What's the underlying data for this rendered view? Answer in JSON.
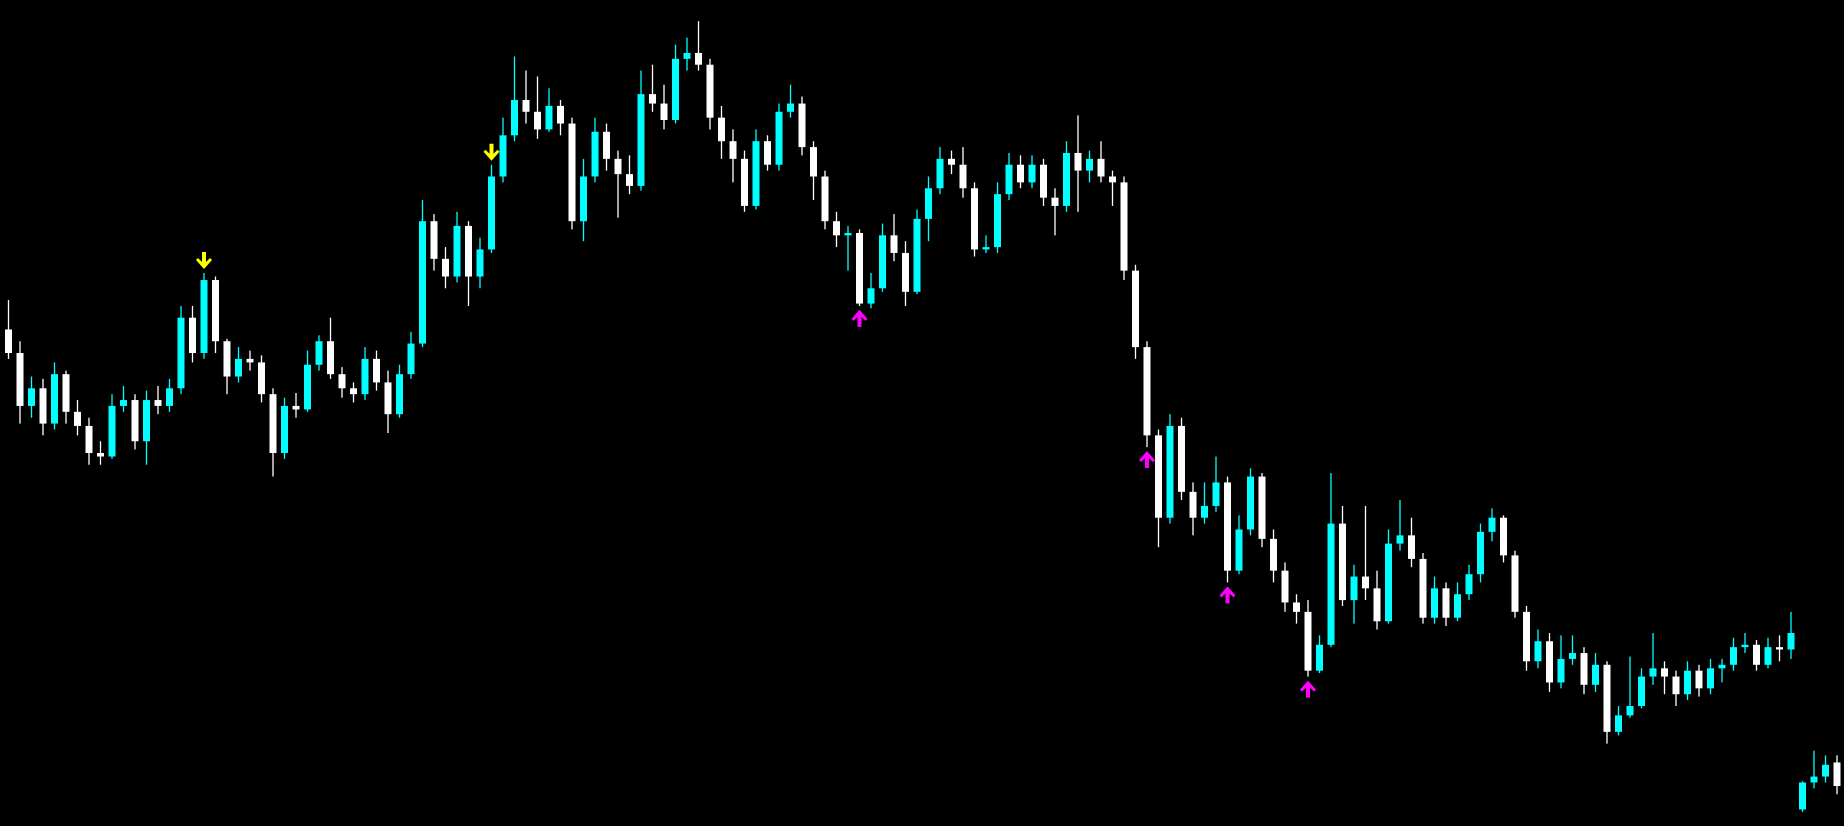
{
  "chart_data": {
    "type": "candlestick",
    "title": "",
    "xlabel": "",
    "ylabel": "",
    "ylim": [
      1.0998,
      1.17
    ],
    "grid": false,
    "legend": "none",
    "colors": {
      "background": "#000000",
      "bullish": "#00ffff",
      "bearish": "#ffffff",
      "sell_signal": "#ffff00",
      "buy_signal": "#ff00ff"
    },
    "ohlc_order": [
      "open",
      "high",
      "low",
      "close"
    ],
    "candles": [
      [
        1.142,
        1.1445,
        1.1395,
        1.14
      ],
      [
        1.14,
        1.141,
        1.134,
        1.1355
      ],
      [
        1.1355,
        1.138,
        1.1345,
        1.137
      ],
      [
        1.137,
        1.1378,
        1.133,
        1.134
      ],
      [
        1.134,
        1.1392,
        1.1335,
        1.1382
      ],
      [
        1.1382,
        1.1385,
        1.134,
        1.135
      ],
      [
        1.135,
        1.136,
        1.133,
        1.1338
      ],
      [
        1.1338,
        1.1345,
        1.1305,
        1.1315
      ],
      [
        1.1315,
        1.1325,
        1.1305,
        1.1312
      ],
      [
        1.1312,
        1.1365,
        1.131,
        1.1355
      ],
      [
        1.1355,
        1.1372,
        1.135,
        1.136
      ],
      [
        1.136,
        1.1365,
        1.1318,
        1.1325
      ],
      [
        1.1325,
        1.1368,
        1.1305,
        1.136
      ],
      [
        1.136,
        1.1372,
        1.1348,
        1.1355
      ],
      [
        1.1355,
        1.1378,
        1.135,
        1.137
      ],
      [
        1.137,
        1.144,
        1.1365,
        1.143
      ],
      [
        1.143,
        1.144,
        1.1392,
        1.14
      ],
      [
        1.14,
        1.1468,
        1.1395,
        1.1462
      ],
      [
        1.1462,
        1.1465,
        1.14,
        1.141
      ],
      [
        1.141,
        1.1412,
        1.1365,
        1.138
      ],
      [
        1.138,
        1.1405,
        1.1375,
        1.1395
      ],
      [
        1.1395,
        1.1402,
        1.1385,
        1.1392
      ],
      [
        1.1392,
        1.1398,
        1.1358,
        1.1365
      ],
      [
        1.1365,
        1.137,
        1.1295,
        1.1315
      ],
      [
        1.1315,
        1.1362,
        1.131,
        1.1355
      ],
      [
        1.1355,
        1.1366,
        1.1345,
        1.1352
      ],
      [
        1.1352,
        1.1402,
        1.135,
        1.139
      ],
      [
        1.139,
        1.1415,
        1.1385,
        1.141
      ],
      [
        1.141,
        1.143,
        1.1378,
        1.1382
      ],
      [
        1.1382,
        1.1388,
        1.1362,
        1.137
      ],
      [
        1.137,
        1.1375,
        1.1358,
        1.1365
      ],
      [
        1.1365,
        1.1405,
        1.136,
        1.1395
      ],
      [
        1.1395,
        1.1402,
        1.1368,
        1.1375
      ],
      [
        1.1375,
        1.1385,
        1.1332,
        1.1348
      ],
      [
        1.1348,
        1.139,
        1.1345,
        1.1382
      ],
      [
        1.1382,
        1.1418,
        1.1378,
        1.1408
      ],
      [
        1.1408,
        1.153,
        1.1405,
        1.1512
      ],
      [
        1.1512,
        1.1518,
        1.147,
        1.148
      ],
      [
        1.148,
        1.149,
        1.1455,
        1.1465
      ],
      [
        1.1465,
        1.152,
        1.146,
        1.1508
      ],
      [
        1.1508,
        1.1512,
        1.144,
        1.1465
      ],
      [
        1.1465,
        1.1498,
        1.1455,
        1.1488
      ],
      [
        1.1488,
        1.156,
        1.1485,
        1.155
      ],
      [
        1.155,
        1.16,
        1.1545,
        1.1585
      ],
      [
        1.1585,
        1.1652,
        1.158,
        1.1615
      ],
      [
        1.1615,
        1.164,
        1.1595,
        1.1605
      ],
      [
        1.1605,
        1.1635,
        1.1582,
        1.159
      ],
      [
        1.159,
        1.1625,
        1.1588,
        1.161
      ],
      [
        1.161,
        1.1615,
        1.1585,
        1.1595
      ],
      [
        1.1595,
        1.16,
        1.1505,
        1.1512
      ],
      [
        1.1512,
        1.1565,
        1.1495,
        1.155
      ],
      [
        1.155,
        1.16,
        1.1545,
        1.1588
      ],
      [
        1.1588,
        1.1595,
        1.1555,
        1.1565
      ],
      [
        1.1565,
        1.1572,
        1.1515,
        1.1552
      ],
      [
        1.1552,
        1.1568,
        1.1535,
        1.1542
      ],
      [
        1.1542,
        1.164,
        1.1538,
        1.162
      ],
      [
        1.162,
        1.1645,
        1.1605,
        1.1612
      ],
      [
        1.1612,
        1.1628,
        1.159,
        1.1598
      ],
      [
        1.1598,
        1.1662,
        1.1595,
        1.165
      ],
      [
        1.165,
        1.1668,
        1.164,
        1.1655
      ],
      [
        1.1655,
        1.1682,
        1.164,
        1.1645
      ],
      [
        1.1645,
        1.165,
        1.159,
        1.16
      ],
      [
        1.16,
        1.161,
        1.1565,
        1.158
      ],
      [
        1.158,
        1.159,
        1.1545,
        1.1565
      ],
      [
        1.1565,
        1.1572,
        1.152,
        1.1525
      ],
      [
        1.1525,
        1.159,
        1.1522,
        1.158
      ],
      [
        1.158,
        1.1585,
        1.1555,
        1.156
      ],
      [
        1.156,
        1.1612,
        1.1555,
        1.1605
      ],
      [
        1.1605,
        1.1628,
        1.16,
        1.1612
      ],
      [
        1.1612,
        1.1618,
        1.1568,
        1.1575
      ],
      [
        1.1575,
        1.158,
        1.153,
        1.155
      ],
      [
        1.155,
        1.1555,
        1.1505,
        1.1512
      ],
      [
        1.1512,
        1.152,
        1.149,
        1.15
      ],
      [
        1.15,
        1.1508,
        1.147,
        1.1502
      ],
      [
        1.1502,
        1.1505,
        1.144,
        1.1442
      ],
      [
        1.1442,
        1.1468,
        1.1438,
        1.1455
      ],
      [
        1.1455,
        1.151,
        1.1452,
        1.15
      ],
      [
        1.15,
        1.1518,
        1.1478,
        1.1485
      ],
      [
        1.1485,
        1.1495,
        1.144,
        1.1452
      ],
      [
        1.1452,
        1.1522,
        1.145,
        1.1514
      ],
      [
        1.1514,
        1.155,
        1.1495,
        1.154
      ],
      [
        1.154,
        1.1575,
        1.1535,
        1.1565
      ],
      [
        1.1565,
        1.1572,
        1.1552,
        1.156
      ],
      [
        1.156,
        1.1575,
        1.1532,
        1.154
      ],
      [
        1.154,
        1.1545,
        1.1482,
        1.1488
      ],
      [
        1.1488,
        1.15,
        1.1485,
        1.149
      ],
      [
        1.149,
        1.1545,
        1.1485,
        1.1535
      ],
      [
        1.1535,
        1.157,
        1.153,
        1.156
      ],
      [
        1.156,
        1.1568,
        1.154,
        1.1545
      ],
      [
        1.1545,
        1.1568,
        1.154,
        1.156
      ],
      [
        1.156,
        1.1565,
        1.1525,
        1.1532
      ],
      [
        1.1532,
        1.154,
        1.15,
        1.1525
      ],
      [
        1.1525,
        1.158,
        1.152,
        1.157
      ],
      [
        1.157,
        1.1602,
        1.152,
        1.1555
      ],
      [
        1.1555,
        1.1572,
        1.1545,
        1.1565
      ],
      [
        1.1565,
        1.158,
        1.1545,
        1.155
      ],
      [
        1.155,
        1.1555,
        1.1525,
        1.1545
      ],
      [
        1.1545,
        1.155,
        1.1462,
        1.147
      ],
      [
        1.147,
        1.1475,
        1.1395,
        1.1405
      ],
      [
        1.1405,
        1.141,
        1.132,
        1.133
      ],
      [
        1.133,
        1.1335,
        1.1235,
        1.126
      ],
      [
        1.126,
        1.1348,
        1.1255,
        1.1338
      ],
      [
        1.1338,
        1.1345,
        1.1275,
        1.1282
      ],
      [
        1.1282,
        1.129,
        1.1245,
        1.126
      ],
      [
        1.126,
        1.129,
        1.1255,
        1.127
      ],
      [
        1.127,
        1.1312,
        1.1265,
        1.129
      ],
      [
        1.129,
        1.1295,
        1.1205,
        1.1215
      ],
      [
        1.1215,
        1.1262,
        1.1212,
        1.125
      ],
      [
        1.125,
        1.1302,
        1.1245,
        1.1295
      ],
      [
        1.1295,
        1.1298,
        1.1235,
        1.1242
      ],
      [
        1.1242,
        1.125,
        1.1205,
        1.1215
      ],
      [
        1.1215,
        1.1222,
        1.118,
        1.1188
      ],
      [
        1.1188,
        1.1195,
        1.117,
        1.118
      ],
      [
        1.118,
        1.119,
        1.1125,
        1.113
      ],
      [
        1.113,
        1.116,
        1.1128,
        1.1152
      ],
      [
        1.1152,
        1.1298,
        1.115,
        1.1255
      ],
      [
        1.1255,
        1.127,
        1.1185,
        1.119
      ],
      [
        1.119,
        1.122,
        1.117,
        1.121
      ],
      [
        1.121,
        1.127,
        1.119,
        1.12
      ],
      [
        1.12,
        1.1215,
        1.1165,
        1.1172
      ],
      [
        1.1172,
        1.125,
        1.117,
        1.1238
      ],
      [
        1.1238,
        1.1275,
        1.1232,
        1.1245
      ],
      [
        1.1245,
        1.126,
        1.1218,
        1.1225
      ],
      [
        1.1225,
        1.123,
        1.117,
        1.1175
      ],
      [
        1.1175,
        1.121,
        1.117,
        1.12
      ],
      [
        1.12,
        1.1205,
        1.1168,
        1.1175
      ],
      [
        1.1175,
        1.1205,
        1.1172,
        1.1195
      ],
      [
        1.1195,
        1.122,
        1.119,
        1.1212
      ],
      [
        1.1212,
        1.1255,
        1.1205,
        1.1248
      ],
      [
        1.1248,
        1.1268,
        1.124,
        1.126
      ],
      [
        1.126,
        1.1262,
        1.1222,
        1.1228
      ],
      [
        1.1228,
        1.1232,
        1.1175,
        1.118
      ],
      [
        1.118,
        1.1185,
        1.113,
        1.1138
      ],
      [
        1.1138,
        1.1165,
        1.1132,
        1.1155
      ],
      [
        1.1155,
        1.1162,
        1.1112,
        1.112
      ],
      [
        1.112,
        1.116,
        1.1115,
        1.114
      ],
      [
        1.114,
        1.116,
        1.1135,
        1.1145
      ],
      [
        1.1145,
        1.115,
        1.111,
        1.1118
      ],
      [
        1.1118,
        1.1145,
        1.1112,
        1.1135
      ],
      [
        1.1135,
        1.1138,
        1.1068,
        1.1078
      ],
      [
        1.1078,
        1.11,
        1.1075,
        1.1092
      ],
      [
        1.1092,
        1.1142,
        1.109,
        1.11
      ],
      [
        1.11,
        1.1132,
        1.1098,
        1.1125
      ],
      [
        1.1125,
        1.1162,
        1.1118,
        1.1132
      ],
      [
        1.1132,
        1.1138,
        1.111,
        1.1125
      ],
      [
        1.1125,
        1.113,
        1.11,
        1.111
      ],
      [
        1.111,
        1.1138,
        1.1105,
        1.113
      ],
      [
        1.113,
        1.1135,
        1.1108,
        1.1115
      ],
      [
        1.1115,
        1.114,
        1.111,
        1.1132
      ],
      [
        1.1132,
        1.114,
        1.112,
        1.1135
      ],
      [
        1.1135,
        1.1158,
        1.113,
        1.115
      ],
      [
        1.115,
        1.1162,
        1.1145,
        1.1152
      ],
      [
        1.1152,
        1.1156,
        1.113,
        1.1135
      ],
      [
        1.1135,
        1.1158,
        1.1132,
        1.115
      ],
      [
        1.115,
        1.116,
        1.1138,
        1.1148
      ],
      [
        1.1148,
        1.118,
        1.114,
        1.1162
      ],
      [
        1.1012,
        1.1036,
        1.101,
        1.1035
      ],
      [
        1.1035,
        1.1062,
        1.103,
        1.104
      ],
      [
        1.104,
        1.1058,
        1.1035,
        1.105
      ],
      [
        1.1052,
        1.1058,
        1.1025,
        1.1032
      ]
    ],
    "signals": [
      {
        "type": "sell",
        "index": 17
      },
      {
        "type": "sell",
        "index": 42
      },
      {
        "type": "buy",
        "index": 74
      },
      {
        "type": "buy",
        "index": 99
      },
      {
        "type": "buy",
        "index": 106
      },
      {
        "type": "buy",
        "index": 113
      }
    ]
  }
}
